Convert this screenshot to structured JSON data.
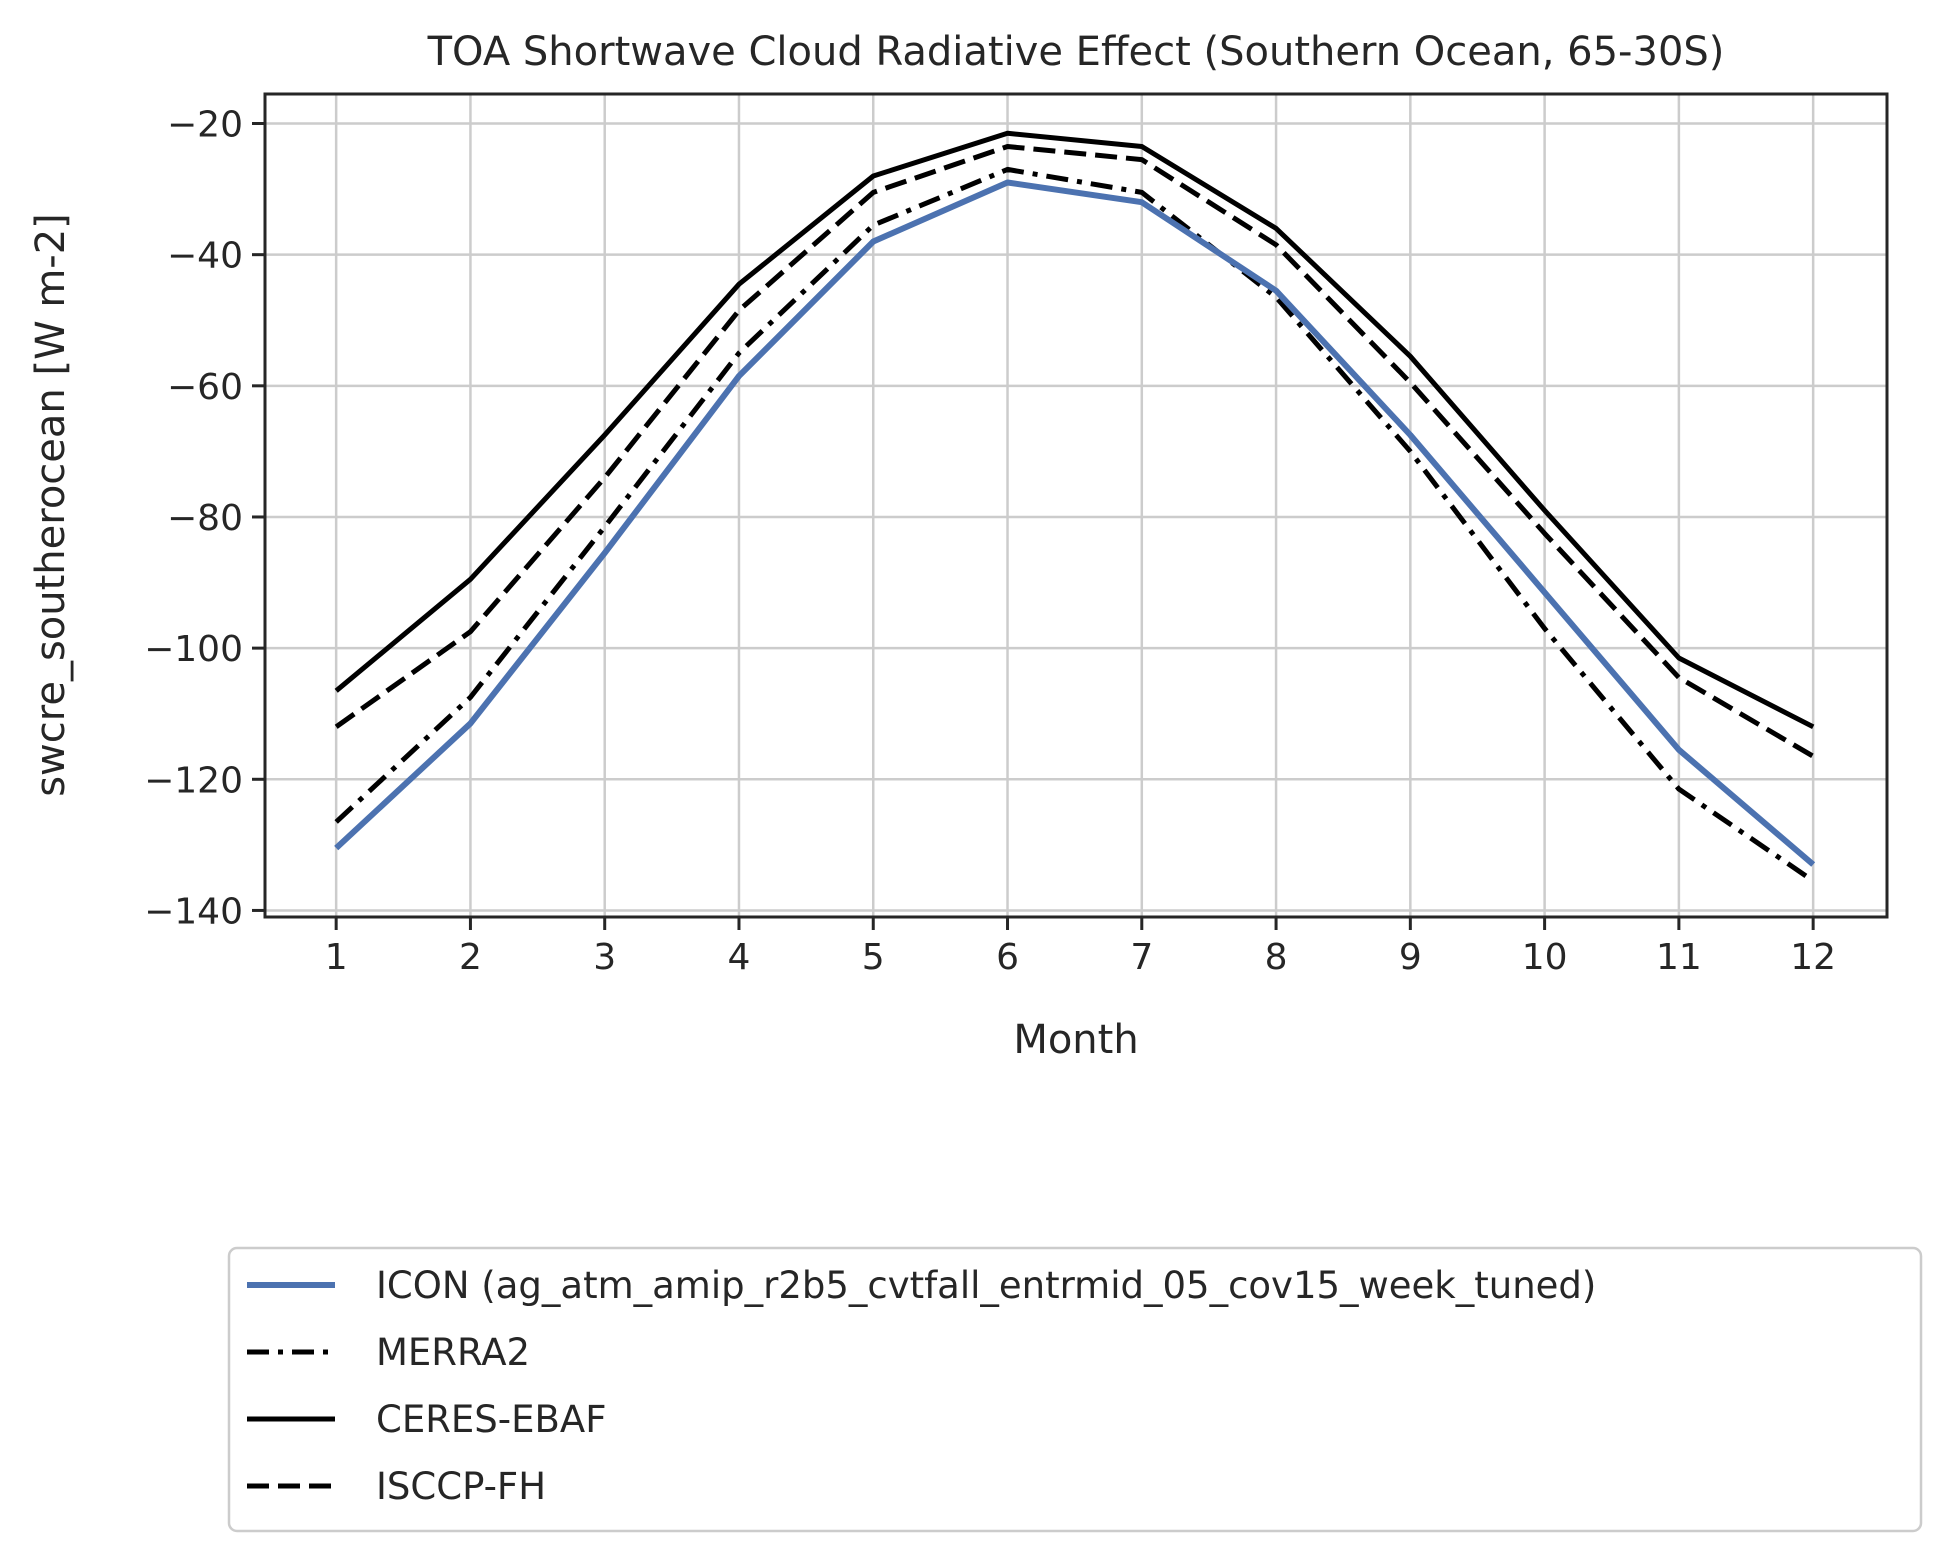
{
  "chart_data": {
    "type": "line",
    "title": "TOA Shortwave Cloud Radiative Effect (Southern Ocean, 65-30S)",
    "xlabel": "Month",
    "ylabel": "swcre_southerocean [W m-2]",
    "x": [
      1,
      2,
      3,
      4,
      5,
      6,
      7,
      8,
      9,
      10,
      11,
      12
    ],
    "x_ticks": [
      "1",
      "2",
      "3",
      "4",
      "5",
      "6",
      "7",
      "8",
      "9",
      "10",
      "11",
      "12"
    ],
    "xlim": [
      0.47,
      12.55
    ],
    "ylim": [
      -141,
      -15.5
    ],
    "y_ticks": [
      -20,
      -40,
      -60,
      -80,
      -100,
      -120,
      -140
    ],
    "y_tick_labels": [
      "−20",
      "−40",
      "−60",
      "−80",
      "−100",
      "−120",
      "−140"
    ],
    "grid": true,
    "legend_position": "below",
    "series": [
      {
        "name": "ICON (ag_atm_amip_r2b5_cvtfall_entrmid_05_cov15_week_tuned)",
        "color": "#4c72b0",
        "style": "solid",
        "values": [
          -130.5,
          -111.5,
          -85.5,
          -58.5,
          -38.0,
          -29.0,
          -32.0,
          -45.5,
          -67.5,
          -91.5,
          -115.5,
          -133.0
        ]
      },
      {
        "name": "MERRA2",
        "color": "#000000",
        "style": "dashdot",
        "values": [
          -126.5,
          -107.5,
          -81.5,
          -55.0,
          -35.5,
          -27.0,
          -30.5,
          -46.5,
          -70.0,
          -97.0,
          -121.5,
          -135.5
        ]
      },
      {
        "name": "CERES-EBAF",
        "color": "#000000",
        "style": "solid",
        "values": [
          -106.5,
          -89.5,
          -67.5,
          -44.5,
          -28.0,
          -21.5,
          -23.5,
          -36.0,
          -55.5,
          -79.0,
          -101.5,
          -112.0
        ]
      },
      {
        "name": "ISCCP-FH",
        "color": "#000000",
        "style": "dashed",
        "values": [
          -112.0,
          -97.5,
          -74.0,
          -48.5,
          -30.5,
          -23.5,
          -25.5,
          -38.5,
          -59.5,
          -82.5,
          -104.5,
          -116.5
        ]
      }
    ]
  }
}
